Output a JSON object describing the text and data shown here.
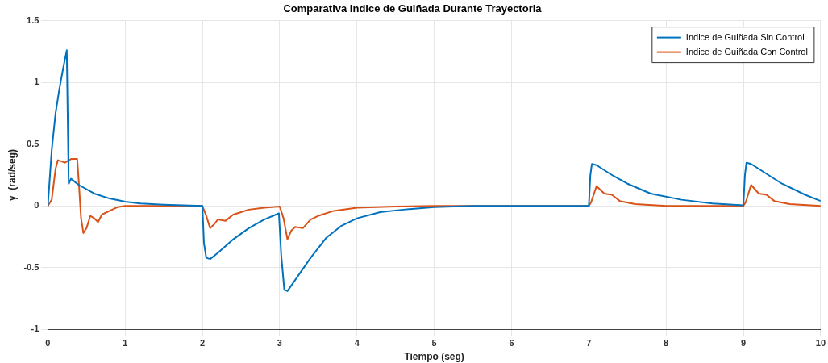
{
  "chart_data": {
    "type": "line",
    "title": "Comparativa Indice de Guiñada Durante Trayectoria",
    "xlabel": "Tiempo (seg)",
    "ylabel": "γ  (rad/seg)",
    "xlim": [
      0,
      10
    ],
    "xticks": [
      0,
      1,
      2,
      3,
      4,
      5,
      6,
      7,
      8,
      9,
      10
    ],
    "ylim": [
      -1,
      1.5
    ],
    "yticks": [
      -1,
      -0.5,
      0,
      0.5,
      1,
      1.5
    ],
    "grid": true,
    "legend": "top right",
    "marker": "none",
    "line_style": "solid",
    "series": [
      {
        "name": "Indice de Guiñada Sin Control",
        "color": "#0072bd",
        "x": [
          0,
          0.05,
          0.1,
          0.15,
          0.2,
          0.245,
          0.26,
          0.27,
          0.3,
          0.4,
          0.6,
          0.8,
          1,
          1.2,
          1.5,
          2.0,
          2.02,
          2.05,
          2.1,
          2.2,
          2.4,
          2.6,
          2.8,
          2.99,
          3.02,
          3.06,
          3.1,
          3.2,
          3.4,
          3.6,
          3.8,
          4,
          4.3,
          4.6,
          5,
          5.5,
          7.0,
          7.02,
          7.04,
          7.1,
          7.3,
          7.5,
          7.8,
          8.2,
          8.6,
          9.0,
          9.02,
          9.04,
          9.1,
          9.3,
          9.5,
          9.8,
          10
        ],
        "values": [
          0,
          0.45,
          0.75,
          0.95,
          1.12,
          1.26,
          0.6,
          0.18,
          0.22,
          0.17,
          0.1,
          0.06,
          0.035,
          0.02,
          0.01,
          0,
          -0.3,
          -0.42,
          -0.43,
          -0.38,
          -0.27,
          -0.18,
          -0.11,
          -0.06,
          -0.4,
          -0.68,
          -0.69,
          -0.6,
          -0.42,
          -0.26,
          -0.16,
          -0.1,
          -0.05,
          -0.03,
          -0.01,
          0,
          0,
          0.25,
          0.34,
          0.33,
          0.25,
          0.18,
          0.1,
          0.05,
          0.02,
          0.005,
          0.25,
          0.35,
          0.34,
          0.26,
          0.18,
          0.09,
          0.04
        ]
      },
      {
        "name": "Indice de Guiñada Con Control",
        "color": "#d95319",
        "x": [
          0,
          0.05,
          0.1,
          0.13,
          0.18,
          0.22,
          0.3,
          0.38,
          0.4,
          0.43,
          0.46,
          0.5,
          0.55,
          0.6,
          0.65,
          0.7,
          0.8,
          0.9,
          1.0,
          1.5,
          2.0,
          2.05,
          2.1,
          2.15,
          2.2,
          2.3,
          2.4,
          2.5,
          2.6,
          2.8,
          3.0,
          3.05,
          3.1,
          3.15,
          3.2,
          3.3,
          3.4,
          3.5,
          3.7,
          4,
          4.5,
          5,
          7,
          7.03,
          7.1,
          7.2,
          7.3,
          7.4,
          7.6,
          8,
          9,
          9.03,
          9.1,
          9.2,
          9.3,
          9.4,
          9.6,
          10
        ],
        "values": [
          0,
          0.05,
          0.3,
          0.37,
          0.36,
          0.35,
          0.38,
          0.38,
          0.2,
          -0.1,
          -0.22,
          -0.18,
          -0.08,
          -0.1,
          -0.13,
          -0.07,
          -0.04,
          -0.01,
          0,
          0,
          0,
          -0.08,
          -0.18,
          -0.15,
          -0.11,
          -0.12,
          -0.07,
          -0.05,
          -0.03,
          -0.015,
          -0.005,
          -0.1,
          -0.27,
          -0.2,
          -0.17,
          -0.18,
          -0.11,
          -0.08,
          -0.04,
          -0.015,
          -0.005,
          0,
          0,
          0.03,
          0.16,
          0.1,
          0.09,
          0.04,
          0.015,
          0,
          0,
          0.03,
          0.17,
          0.1,
          0.09,
          0.04,
          0.015,
          0
        ]
      }
    ]
  }
}
